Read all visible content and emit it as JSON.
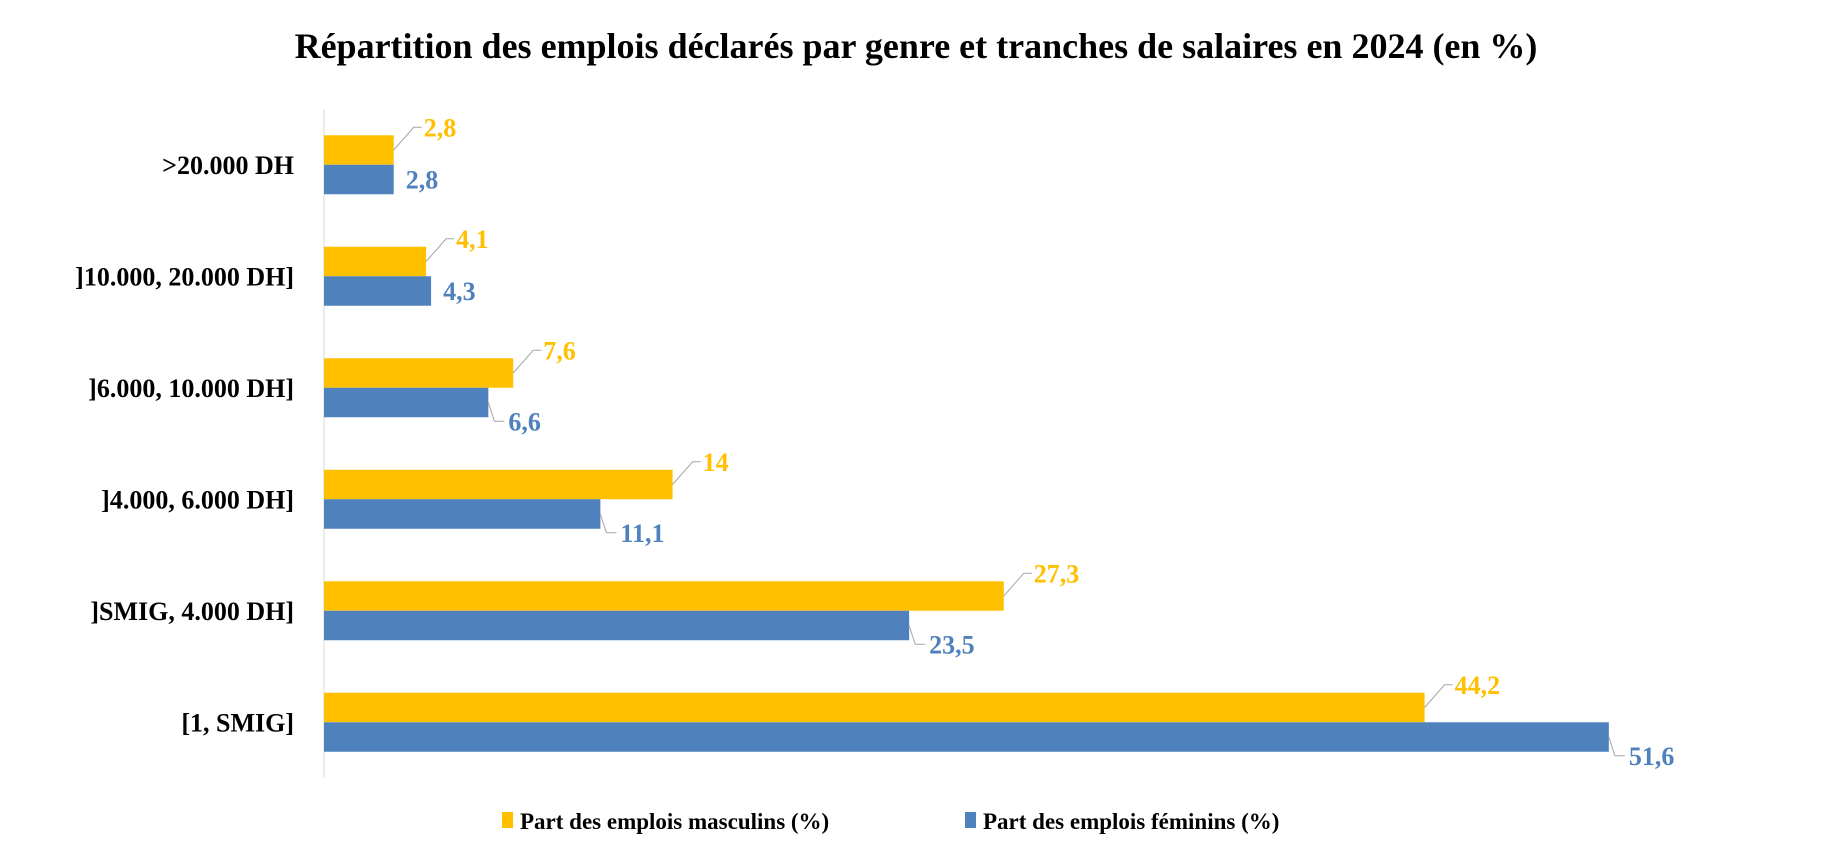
{
  "chart_data": {
    "type": "bar",
    "orientation": "horizontal",
    "title": "Répartition des emplois déclarés par genre et tranches de salaires en 2024 (en %)",
    "categories": [
      ">20.000 DH",
      "]10.000, 20.000 DH]",
      "]6.000, 10.000 DH]",
      "]4.000, 6.000 DH]",
      "]SMIG, 4.000 DH]",
      "[1, SMIG]"
    ],
    "series": [
      {
        "name": "Part des emplois masculins (%)",
        "color": "#FFC000",
        "values": [
          2.8,
          4.1,
          7.6,
          14,
          27.3,
          44.2
        ],
        "labels": [
          "2,8",
          "4,1",
          "7,6",
          "14",
          "27,3",
          "44,2"
        ]
      },
      {
        "name": "Part des emplois féminins (%)",
        "color": "#4F81BD",
        "values": [
          2.8,
          4.3,
          6.6,
          11.1,
          23.5,
          51.6
        ],
        "labels": [
          "2,8",
          "4,3",
          "6,6",
          "11,1",
          "23,5",
          "51,6"
        ]
      }
    ],
    "xlim": [
      0,
      55
    ],
    "grid": false,
    "legend": "bottom"
  }
}
